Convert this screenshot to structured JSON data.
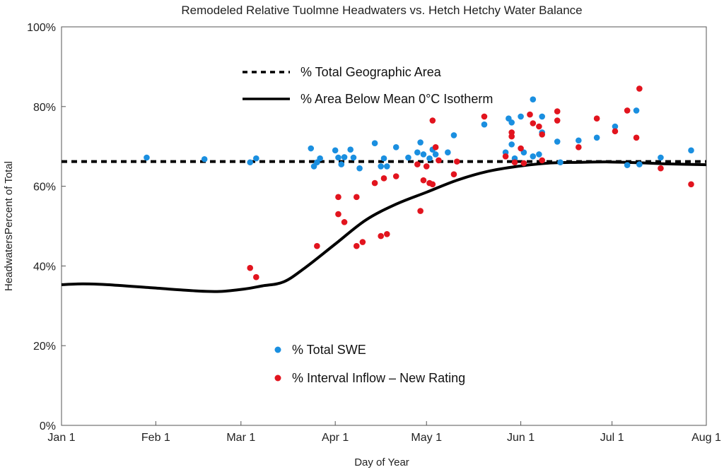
{
  "chart_data": {
    "type": "scatter",
    "title": "Remodeled Relative Tuolmne Headwaters vs. Hetch Hetchy Water Balance",
    "xlabel": "Day of Year",
    "ylabel": "HeadwatersPercent of Total",
    "xlim": [
      0,
      212
    ],
    "ylim": [
      0,
      100
    ],
    "x_ticks": [
      {
        "label": "Jan 1",
        "value": 0
      },
      {
        "label": "Feb 1",
        "value": 31
      },
      {
        "label": "Mar 1",
        "value": 59
      },
      {
        "label": "Apr 1",
        "value": 90
      },
      {
        "label": "May 1",
        "value": 120
      },
      {
        "label": "Jun 1",
        "value": 151
      },
      {
        "label": "Jul 1",
        "value": 181
      },
      {
        "label": "Aug 1",
        "value": 212
      }
    ],
    "y_ticks": [
      {
        "label": "0%",
        "value": 0
      },
      {
        "label": "20%",
        "value": 20
      },
      {
        "label": "40%",
        "value": 40
      },
      {
        "label": "60%",
        "value": 60
      },
      {
        "label": "80%",
        "value": 80
      },
      {
        "label": "100%",
        "value": 100
      }
    ],
    "grid": false,
    "lines": [
      {
        "name": "% Total Geographic Area",
        "style": "dashed",
        "color": "#000000",
        "x": [
          0,
          212
        ],
        "y": [
          66.2,
          66.2
        ]
      },
      {
        "name": "% Area Below Mean 0°C Isotherm",
        "style": "solid",
        "color": "#000000",
        "x": [
          0,
          7,
          15,
          30,
          45,
          52,
          60,
          66,
          73,
          80,
          90,
          100,
          110,
          120,
          130,
          140,
          150,
          160,
          170,
          180,
          190,
          200,
          212
        ],
        "y": [
          35.3,
          35.5,
          35.3,
          34.5,
          33.7,
          33.6,
          34.2,
          35.0,
          36.0,
          39.5,
          45.5,
          51.5,
          55.5,
          58.5,
          61.5,
          63.7,
          65.0,
          65.8,
          66.0,
          66.1,
          65.9,
          65.6,
          65.4
        ]
      }
    ],
    "series": [
      {
        "name": "% Total SWE",
        "color": "#1a8fe0",
        "points": [
          [
            28,
            67.2
          ],
          [
            47,
            66.8
          ],
          [
            62,
            66.0
          ],
          [
            64,
            67.0
          ],
          [
            82,
            69.5
          ],
          [
            83,
            65.0
          ],
          [
            84,
            66.0
          ],
          [
            85,
            67.0
          ],
          [
            90,
            69.0
          ],
          [
            91,
            67.2
          ],
          [
            92,
            65.5
          ],
          [
            93,
            67.3
          ],
          [
            95,
            69.2
          ],
          [
            96,
            67.2
          ],
          [
            98,
            64.5
          ],
          [
            103,
            70.8
          ],
          [
            105,
            65.0
          ],
          [
            106,
            67.0
          ],
          [
            107,
            65.0
          ],
          [
            110,
            69.8
          ],
          [
            114,
            67.2
          ],
          [
            117,
            68.5
          ],
          [
            118,
            71.0
          ],
          [
            119,
            68.0
          ],
          [
            121,
            67.0
          ],
          [
            122,
            69.2
          ],
          [
            123,
            68.0
          ],
          [
            127,
            68.5
          ],
          [
            129,
            72.8
          ],
          [
            139,
            75.5
          ],
          [
            146,
            68.5
          ],
          [
            147,
            77.0
          ],
          [
            148,
            76.0
          ],
          [
            148,
            70.5
          ],
          [
            149,
            67.0
          ],
          [
            151,
            77.5
          ],
          [
            152,
            68.5
          ],
          [
            155,
            67.5
          ],
          [
            155,
            81.8
          ],
          [
            157,
            68.0
          ],
          [
            158,
            77.5
          ],
          [
            158,
            73.5
          ],
          [
            163,
            71.2
          ],
          [
            164,
            66.0
          ],
          [
            170,
            71.5
          ],
          [
            176,
            72.2
          ],
          [
            182,
            75.0
          ],
          [
            186,
            65.3
          ],
          [
            189,
            79.0
          ],
          [
            190,
            65.5
          ],
          [
            197,
            67.2
          ],
          [
            207,
            69.0
          ]
        ]
      },
      {
        "name": "% Interval Inflow – New Rating",
        "color": "#e2141e",
        "points": [
          [
            62,
            39.5
          ],
          [
            64,
            37.2
          ],
          [
            84,
            45.0
          ],
          [
            91,
            57.3
          ],
          [
            91,
            53.0
          ],
          [
            93,
            51.0
          ],
          [
            97,
            57.3
          ],
          [
            97,
            45.0
          ],
          [
            99,
            46.0
          ],
          [
            103,
            60.8
          ],
          [
            105,
            47.5
          ],
          [
            106,
            62.0
          ],
          [
            107,
            48.0
          ],
          [
            110,
            62.5
          ],
          [
            117,
            65.5
          ],
          [
            118,
            53.8
          ],
          [
            119,
            61.5
          ],
          [
            120,
            65.0
          ],
          [
            121,
            60.8
          ],
          [
            122,
            76.5
          ],
          [
            122,
            60.5
          ],
          [
            123,
            69.8
          ],
          [
            124,
            66.5
          ],
          [
            129,
            63.0
          ],
          [
            130,
            66.2
          ],
          [
            139,
            77.5
          ],
          [
            146,
            67.5
          ],
          [
            148,
            72.5
          ],
          [
            148,
            73.5
          ],
          [
            149,
            66.0
          ],
          [
            151,
            69.5
          ],
          [
            152,
            65.8
          ],
          [
            154,
            78.0
          ],
          [
            155,
            75.8
          ],
          [
            157,
            75.0
          ],
          [
            158,
            73.0
          ],
          [
            158,
            66.5
          ],
          [
            163,
            78.8
          ],
          [
            163,
            76.5
          ],
          [
            170,
            69.8
          ],
          [
            176,
            77.0
          ],
          [
            182,
            73.8
          ],
          [
            186,
            79.0
          ],
          [
            189,
            72.2
          ],
          [
            190,
            84.5
          ],
          [
            197,
            64.5
          ],
          [
            207,
            60.5
          ]
        ]
      }
    ],
    "legends": [
      {
        "position": "top-center",
        "entries": [
          "% Total Geographic Area",
          "% Area Below Mean 0°C Isotherm"
        ]
      },
      {
        "position": "bottom-center",
        "entries": [
          "% Total SWE",
          "% Interval Inflow – New Rating"
        ]
      }
    ]
  }
}
